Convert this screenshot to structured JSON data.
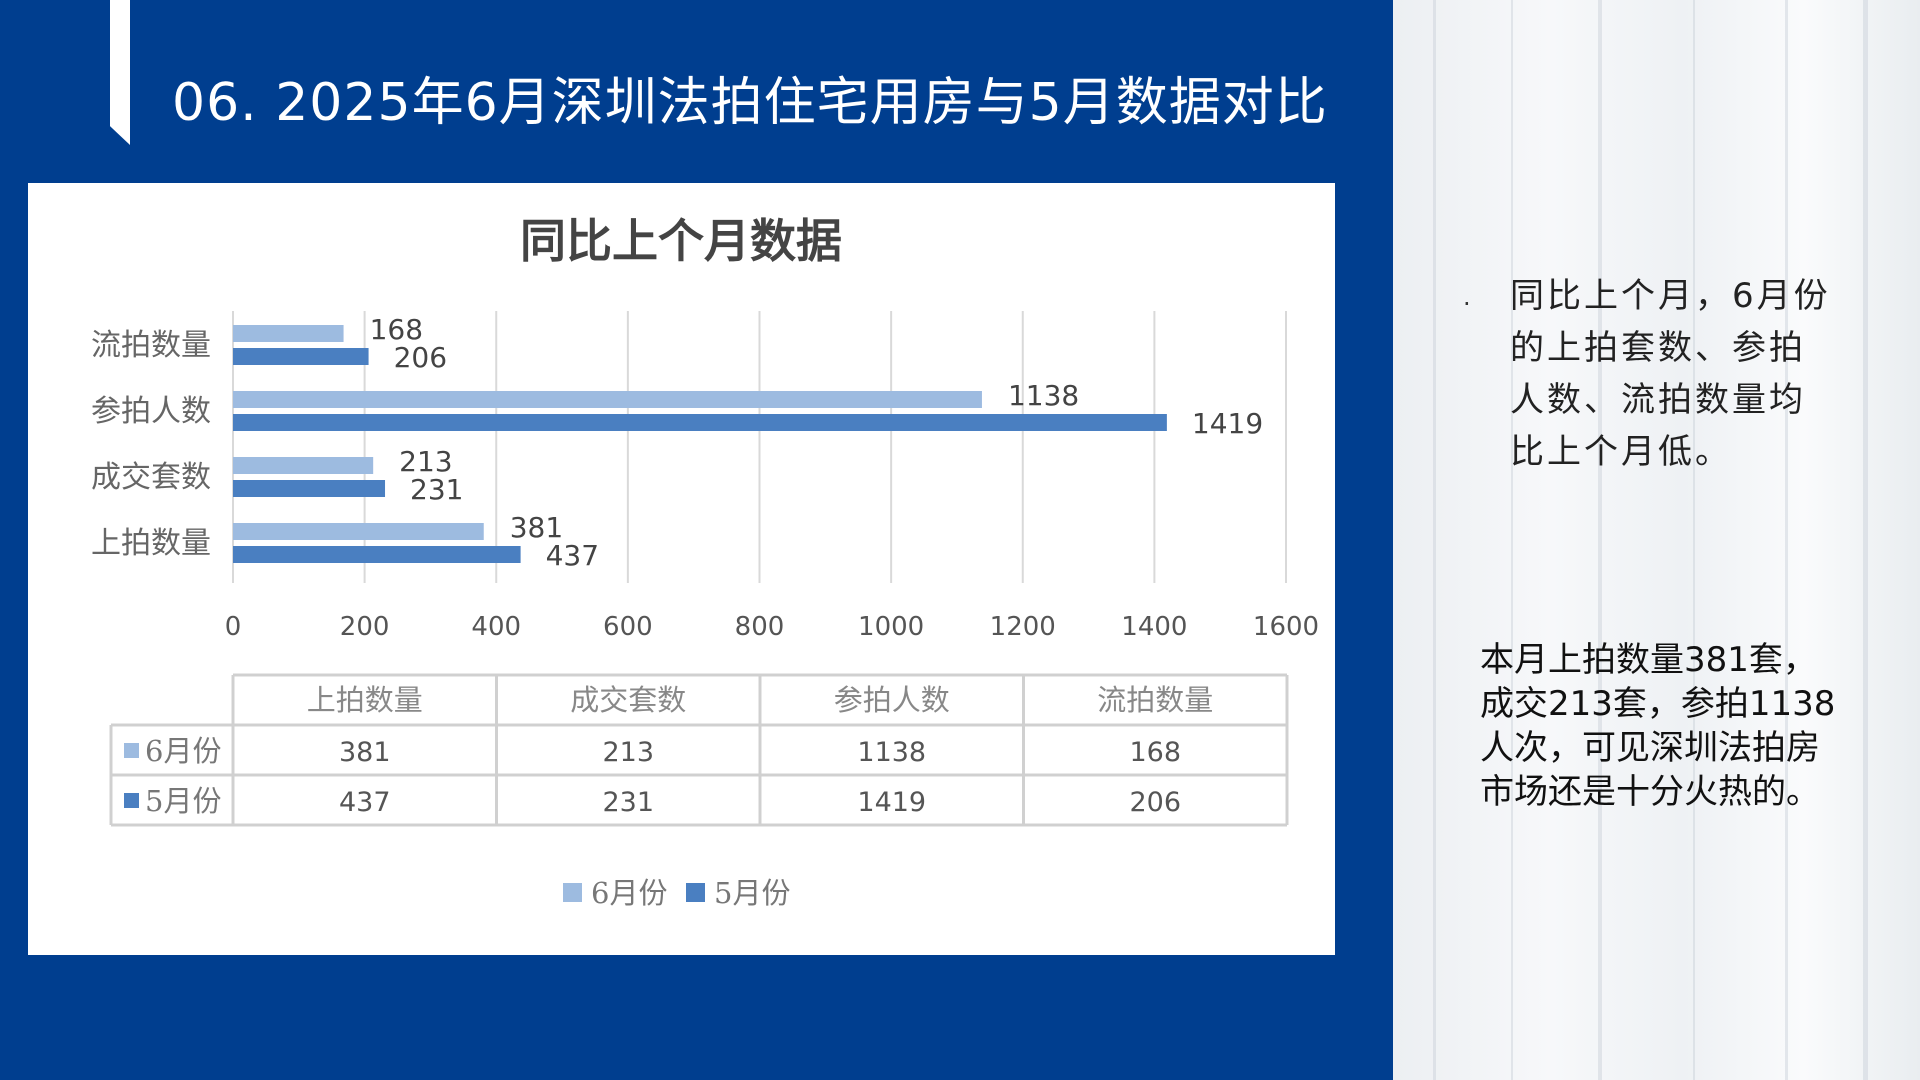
{
  "header": {
    "title": "06. 2025年6月深圳法拍住宅用房与5月数据对比"
  },
  "chart_data": {
    "type": "bar",
    "orientation": "horizontal",
    "title": "同比上个月数据",
    "categories": [
      "上拍数量",
      "成交套数",
      "参拍人数",
      "流拍数量"
    ],
    "series": [
      {
        "name": "6月份",
        "values": [
          381,
          213,
          1138,
          168
        ],
        "color": "#9dbbe0"
      },
      {
        "name": "5月份",
        "values": [
          437,
          231,
          1419,
          206
        ],
        "color": "#4a7fc1"
      }
    ],
    "xlim": [
      0,
      1600
    ],
    "xticks": [
      "0",
      "200",
      "400",
      "600",
      "800",
      "1000",
      "1200",
      "1400",
      "1600"
    ],
    "grid": true,
    "legend_position": "bottom",
    "data_table": true
  },
  "notes": {
    "bullet_symbol": "·",
    "point1": "同比上个月，6月份的上拍套数、参拍人数、流拍数量均比上个月低。",
    "point2": "本月上拍数量381套，成交213套，参拍1138人次，可见深圳法拍房市场还是十分火热的。"
  }
}
